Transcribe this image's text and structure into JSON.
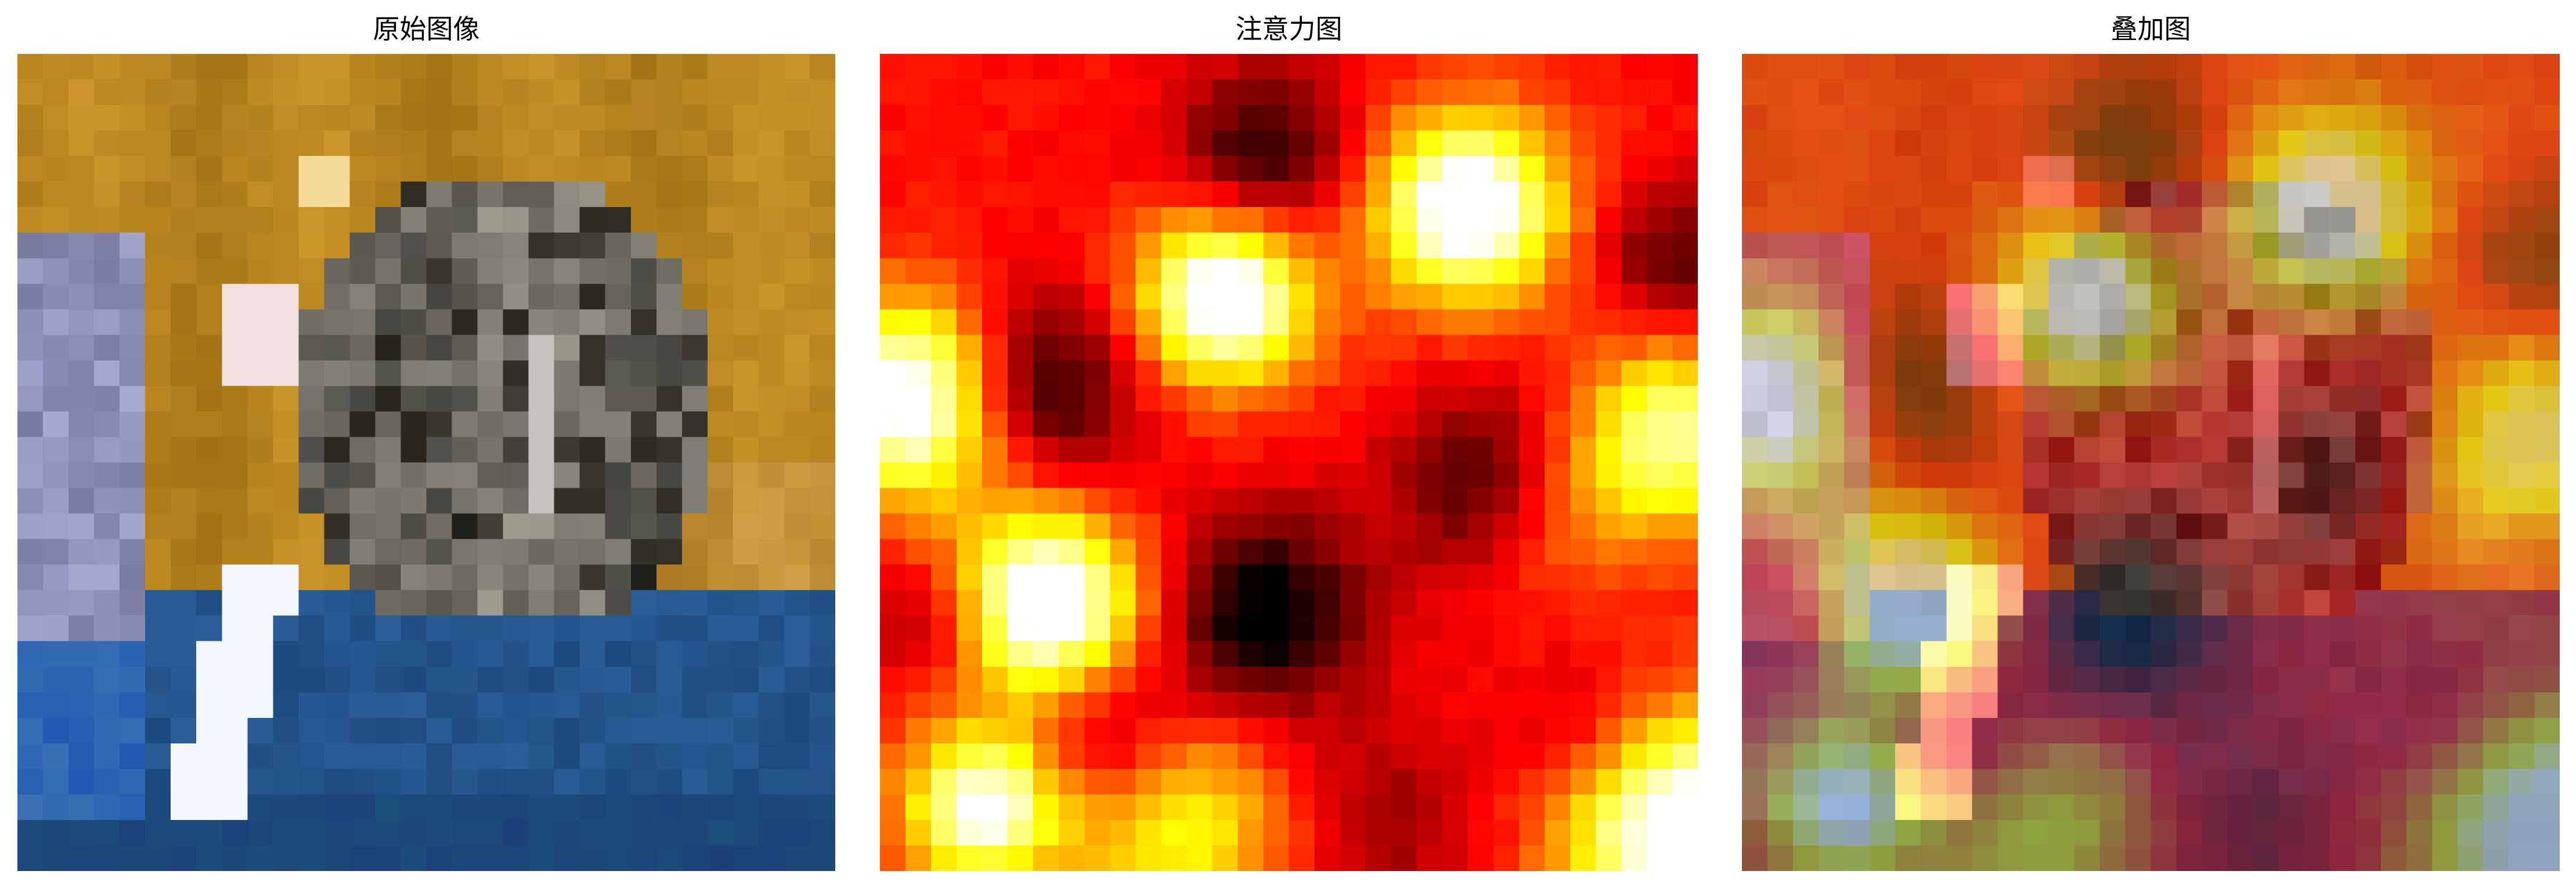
{
  "panels": [
    {
      "title": "原始图像",
      "image_role": "original-image"
    },
    {
      "title": "注意力图",
      "image_role": "attention-map",
      "colormap": "hot"
    },
    {
      "title": "叠加图",
      "image_role": "overlay-image"
    }
  ],
  "colors": {
    "background": "#ffffff",
    "text": "#000000"
  }
}
